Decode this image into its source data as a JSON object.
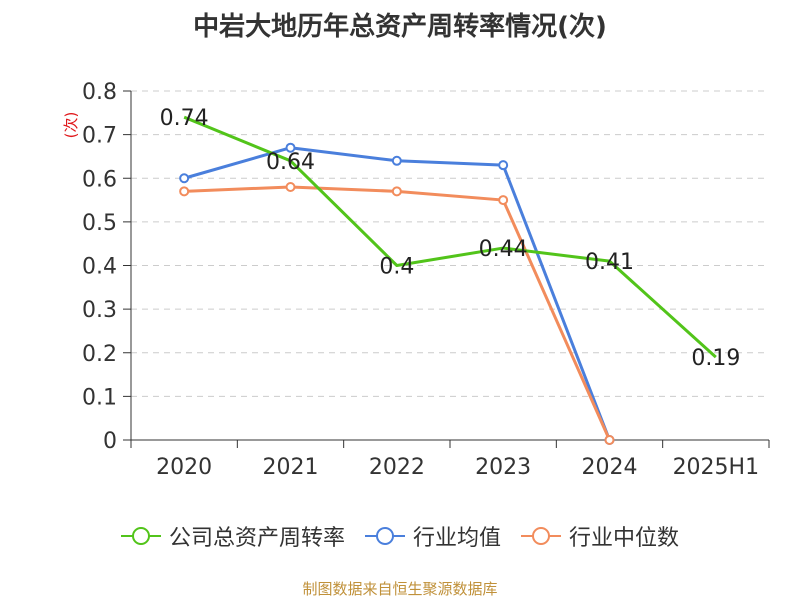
{
  "chart_data": {
    "type": "line",
    "title": "中岩大地历年总资产周转率情况(次)",
    "ylabel": "(次)",
    "xlabel": "",
    "ylim": [
      0,
      0.8
    ],
    "yticks": [
      0,
      0.1,
      0.2,
      0.3,
      0.4,
      0.5,
      0.6,
      0.7,
      0.8
    ],
    "ytick_labels": [
      "0",
      "0.1",
      "0.2",
      "0.3",
      "0.4",
      "0.5",
      "0.6",
      "0.7",
      "0.8"
    ],
    "grid": true,
    "legend_position": "bottom",
    "categories": [
      "2020",
      "2021",
      "2022",
      "2023",
      "2024",
      "2025H1"
    ],
    "series": [
      {
        "name": "公司总资产周转率",
        "color": "#52c41a",
        "values": [
          0.74,
          0.64,
          0.4,
          0.44,
          0.41,
          0.19
        ],
        "labels": [
          "0.74",
          "0.64",
          "0.4",
          "0.44",
          "0.41",
          "0.19"
        ],
        "markers": false
      },
      {
        "name": "行业均值",
        "color": "#4a7fdc",
        "values": [
          0.6,
          0.67,
          0.64,
          0.63,
          0,
          null
        ],
        "markers": true
      },
      {
        "name": "行业中位数",
        "color": "#f28c5c",
        "values": [
          0.57,
          0.58,
          0.57,
          0.55,
          0,
          null
        ],
        "markers": true
      }
    ],
    "source": "制图数据来自恒生聚源数据库"
  }
}
